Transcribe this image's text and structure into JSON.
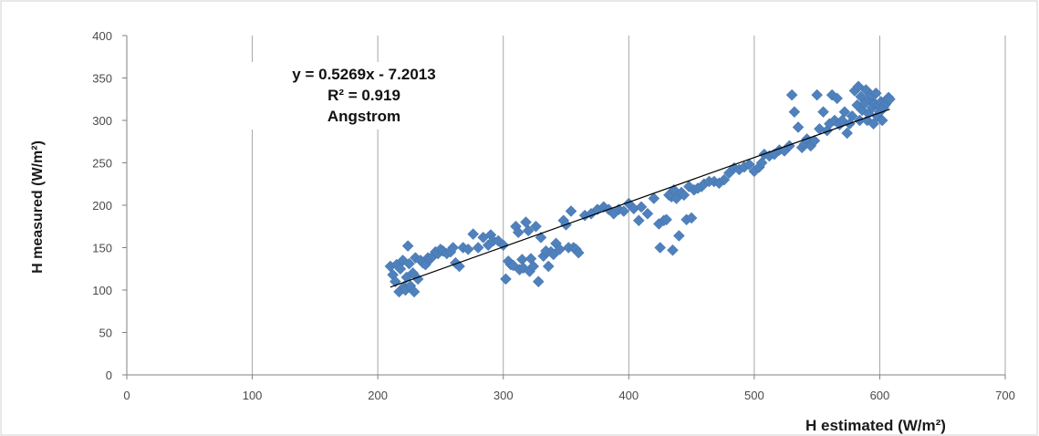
{
  "chart_data": {
    "type": "scatter",
    "title": "",
    "xlabel": "H estimated (W/m²)",
    "ylabel": "H measured (W/m²)",
    "xlim": [
      0,
      700
    ],
    "ylim": [
      0,
      400
    ],
    "x_ticks": [
      0,
      100,
      200,
      300,
      400,
      500,
      600,
      700
    ],
    "y_ticks": [
      0,
      50,
      100,
      150,
      200,
      250,
      300,
      350,
      400
    ],
    "grid": {
      "vertical": true,
      "horizontal": false
    },
    "marker": "diamond",
    "marker_color": "#4f81bd",
    "trendline": {
      "slope": 0.5269,
      "intercept": -7.2013,
      "x_range": [
        210,
        608
      ],
      "color": "#000000"
    },
    "annotation": {
      "equation": "y = 0.5269x - 7.2013",
      "r_squared": "R² = 0.919",
      "model": "Angstrom"
    },
    "series": [
      {
        "points": [
          [
            210,
            128
          ],
          [
            212,
            118
          ],
          [
            214,
            110
          ],
          [
            215,
            130
          ],
          [
            217,
            98
          ],
          [
            218,
            125
          ],
          [
            220,
            135
          ],
          [
            221,
            104
          ],
          [
            222,
            100
          ],
          [
            223,
            115
          ],
          [
            224,
            152
          ],
          [
            225,
            131
          ],
          [
            226,
            105
          ],
          [
            228,
            120
          ],
          [
            229,
            98
          ],
          [
            230,
            138
          ],
          [
            232,
            113
          ],
          [
            234,
            135
          ],
          [
            236,
            132
          ],
          [
            238,
            130
          ],
          [
            240,
            138
          ],
          [
            242,
            137
          ],
          [
            244,
            140
          ],
          [
            246,
            145
          ],
          [
            248,
            143
          ],
          [
            250,
            148
          ],
          [
            252,
            146
          ],
          [
            255,
            143
          ],
          [
            258,
            145
          ],
          [
            260,
            150
          ],
          [
            262,
            132
          ],
          [
            265,
            128
          ],
          [
            268,
            150
          ],
          [
            272,
            148
          ],
          [
            276,
            166
          ],
          [
            280,
            150
          ],
          [
            284,
            162
          ],
          [
            288,
            153
          ],
          [
            290,
            165
          ],
          [
            292,
            158
          ],
          [
            296,
            158
          ],
          [
            300,
            153
          ],
          [
            302,
            113
          ],
          [
            304,
            134
          ],
          [
            306,
            130
          ],
          [
            308,
            129
          ],
          [
            310,
            175
          ],
          [
            312,
            168
          ],
          [
            313,
            124
          ],
          [
            315,
            136
          ],
          [
            316,
            126
          ],
          [
            318,
            180
          ],
          [
            320,
            170
          ],
          [
            321,
            122
          ],
          [
            322,
            137
          ],
          [
            324,
            128
          ],
          [
            326,
            175
          ],
          [
            328,
            110
          ],
          [
            330,
            162
          ],
          [
            332,
            140
          ],
          [
            334,
            146
          ],
          [
            336,
            128
          ],
          [
            338,
            145
          ],
          [
            340,
            142
          ],
          [
            342,
            155
          ],
          [
            345,
            148
          ],
          [
            348,
            182
          ],
          [
            350,
            177
          ],
          [
            352,
            150
          ],
          [
            354,
            193
          ],
          [
            356,
            150
          ],
          [
            358,
            148
          ],
          [
            360,
            144
          ],
          [
            365,
            188
          ],
          [
            370,
            190
          ],
          [
            375,
            195
          ],
          [
            380,
            198
          ],
          [
            384,
            195
          ],
          [
            388,
            190
          ],
          [
            392,
            195
          ],
          [
            396,
            193
          ],
          [
            400,
            202
          ],
          [
            404,
            196
          ],
          [
            408,
            182
          ],
          [
            410,
            198
          ],
          [
            415,
            190
          ],
          [
            420,
            208
          ],
          [
            424,
            178
          ],
          [
            425,
            150
          ],
          [
            428,
            182
          ],
          [
            430,
            183
          ],
          [
            432,
            212
          ],
          [
            434,
            210
          ],
          [
            435,
            147
          ],
          [
            436,
            218
          ],
          [
            438,
            208
          ],
          [
            440,
            164
          ],
          [
            442,
            215
          ],
          [
            444,
            212
          ],
          [
            446,
            183
          ],
          [
            448,
            222
          ],
          [
            450,
            185
          ],
          [
            452,
            218
          ],
          [
            455,
            220
          ],
          [
            458,
            222
          ],
          [
            460,
            225
          ],
          [
            464,
            228
          ],
          [
            468,
            228
          ],
          [
            472,
            226
          ],
          [
            476,
            230
          ],
          [
            480,
            238
          ],
          [
            484,
            244
          ],
          [
            488,
            242
          ],
          [
            492,
            245
          ],
          [
            496,
            248
          ],
          [
            500,
            240
          ],
          [
            504,
            245
          ],
          [
            506,
            250
          ],
          [
            508,
            260
          ],
          [
            512,
            258
          ],
          [
            516,
            260
          ],
          [
            520,
            265
          ],
          [
            524,
            264
          ],
          [
            528,
            270
          ],
          [
            530,
            330
          ],
          [
            532,
            310
          ],
          [
            535,
            292
          ],
          [
            538,
            268
          ],
          [
            540,
            272
          ],
          [
            542,
            278
          ],
          [
            545,
            270
          ],
          [
            548,
            276
          ],
          [
            550,
            330
          ],
          [
            552,
            290
          ],
          [
            555,
            310
          ],
          [
            558,
            288
          ],
          [
            560,
            296
          ],
          [
            562,
            330
          ],
          [
            564,
            300
          ],
          [
            566,
            326
          ],
          [
            568,
            295
          ],
          [
            570,
            300
          ],
          [
            572,
            310
          ],
          [
            574,
            285
          ],
          [
            576,
            296
          ],
          [
            578,
            305
          ],
          [
            580,
            335
          ],
          [
            582,
            318
          ],
          [
            583,
            340
          ],
          [
            584,
            300
          ],
          [
            585,
            328
          ],
          [
            586,
            312
          ],
          [
            588,
            320
          ],
          [
            589,
            336
          ],
          [
            590,
            300
          ],
          [
            591,
            308
          ],
          [
            592,
            325
          ],
          [
            593,
            330
          ],
          [
            594,
            315
          ],
          [
            595,
            296
          ],
          [
            596,
            320
          ],
          [
            597,
            332
          ],
          [
            598,
            305
          ],
          [
            599,
            318
          ],
          [
            600,
            310
          ],
          [
            601,
            322
          ],
          [
            602,
            300
          ],
          [
            603,
            315
          ],
          [
            604,
            318
          ],
          [
            605,
            320
          ],
          [
            606,
            325
          ],
          [
            607,
            327
          ],
          [
            608,
            325
          ]
        ]
      }
    ]
  }
}
